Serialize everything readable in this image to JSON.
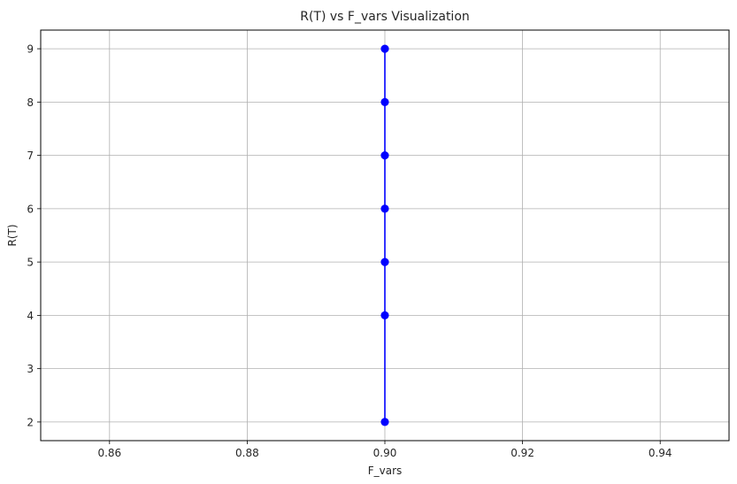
{
  "chart_data": {
    "type": "line",
    "title": "R(T) vs F_vars Visualization",
    "xlabel": "F_vars",
    "ylabel": "R(T)",
    "xlim": [
      0.85,
      0.95
    ],
    "ylim": [
      1.65,
      9.35
    ],
    "xticks": [
      "0.86",
      "0.88",
      "0.90",
      "0.92",
      "0.94"
    ],
    "yticks": [
      "2",
      "3",
      "4",
      "5",
      "6",
      "7",
      "8",
      "9"
    ],
    "grid": true,
    "series": [
      {
        "color": "#0000ff",
        "marker": "circle",
        "points": [
          {
            "x": 0.9,
            "y": 2
          },
          {
            "x": 0.9,
            "y": 4
          },
          {
            "x": 0.9,
            "y": 5
          },
          {
            "x": 0.9,
            "y": 6
          },
          {
            "x": 0.9,
            "y": 7
          },
          {
            "x": 0.9,
            "y": 8
          },
          {
            "x": 0.9,
            "y": 9
          }
        ]
      }
    ]
  }
}
